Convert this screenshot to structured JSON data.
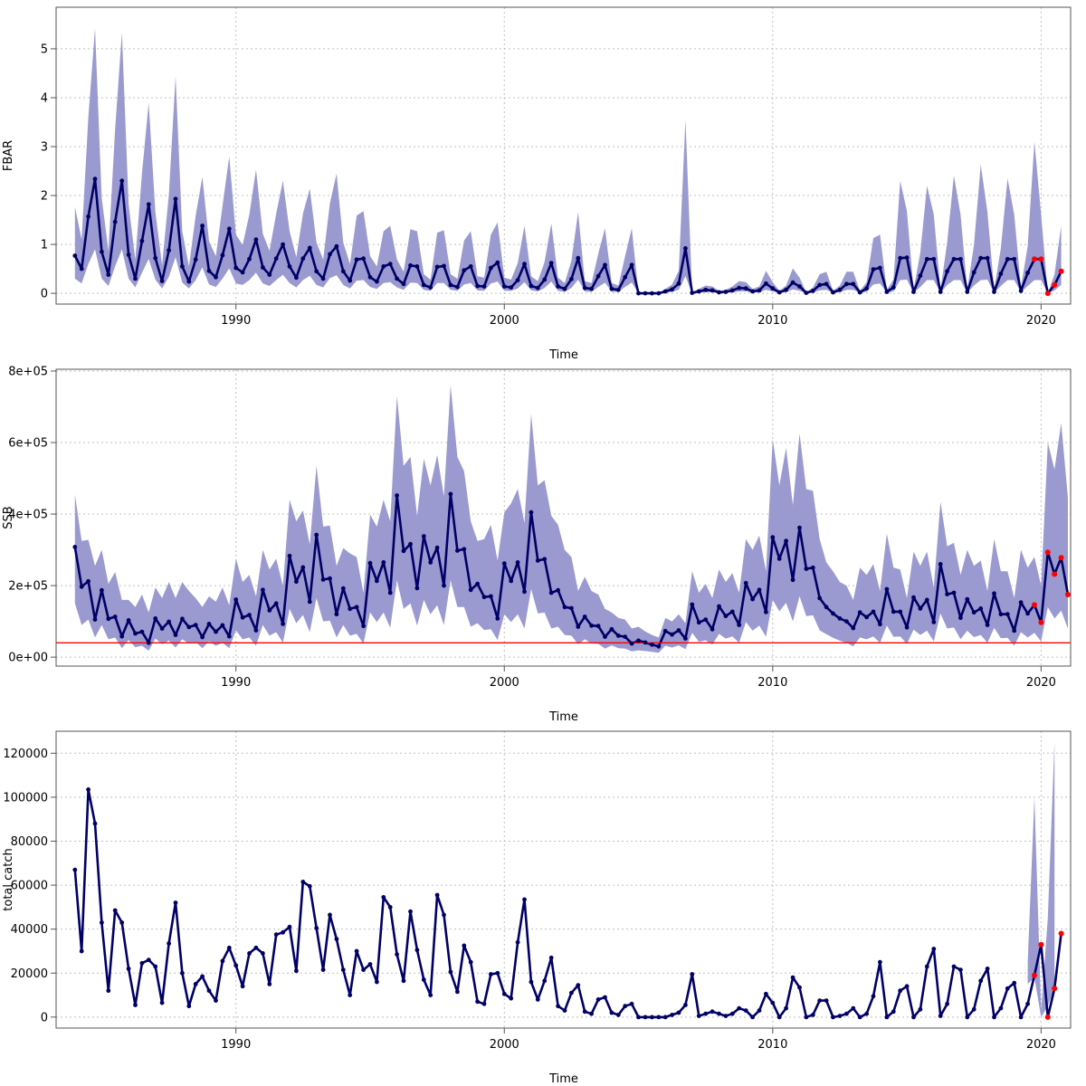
{
  "colors": {
    "band": "#9a9ad0",
    "line": "#000066",
    "recent": "#ff0000",
    "refline": "#ff0000",
    "grid": "#c0c0c0"
  },
  "chart_data": [
    {
      "type": "line",
      "xlabel": "Time",
      "ylabel": "FBAR",
      "xlim": [
        1983.3,
        2021.1
      ],
      "ylim": [
        -0.22,
        5.85
      ],
      "xticks": [
        1990,
        2000,
        2010,
        2020
      ],
      "xtick_labels": [
        "1990",
        "2000",
        "2010",
        "2020"
      ],
      "yticks": [
        0,
        1,
        2,
        3,
        4,
        5
      ],
      "ytick_labels": [
        "0",
        "1",
        "2",
        "3",
        "4",
        "5"
      ],
      "grid": true,
      "x_start": 1984.0,
      "x_step": 0.25,
      "recent_from": 2019.75,
      "values": [
        0.77,
        0.5,
        1.57,
        2.34,
        0.85,
        0.38,
        1.46,
        2.3,
        0.79,
        0.3,
        1.07,
        1.82,
        0.72,
        0.25,
        0.88,
        1.93,
        0.55,
        0.24,
        0.69,
        1.38,
        0.46,
        0.33,
        0.78,
        1.32,
        0.52,
        0.43,
        0.7,
        1.1,
        0.53,
        0.38,
        0.71,
        1.0,
        0.55,
        0.32,
        0.71,
        0.93,
        0.45,
        0.3,
        0.8,
        0.96,
        0.45,
        0.26,
        0.69,
        0.71,
        0.33,
        0.24,
        0.55,
        0.6,
        0.3,
        0.19,
        0.57,
        0.55,
        0.17,
        0.12,
        0.54,
        0.56,
        0.17,
        0.13,
        0.47,
        0.55,
        0.15,
        0.14,
        0.52,
        0.63,
        0.14,
        0.12,
        0.27,
        0.6,
        0.15,
        0.11,
        0.28,
        0.62,
        0.14,
        0.09,
        0.29,
        0.72,
        0.11,
        0.09,
        0.35,
        0.58,
        0.09,
        0.07,
        0.33,
        0.58,
        0.0,
        0.0,
        0.0,
        0.0,
        0.04,
        0.08,
        0.2,
        0.92,
        0.01,
        0.04,
        0.07,
        0.06,
        0.02,
        0.03,
        0.06,
        0.11,
        0.1,
        0.04,
        0.06,
        0.2,
        0.1,
        0.02,
        0.07,
        0.22,
        0.14,
        0.01,
        0.05,
        0.17,
        0.19,
        0.02,
        0.07,
        0.19,
        0.19,
        0.02,
        0.1,
        0.49,
        0.52,
        0.03,
        0.12,
        0.72,
        0.73,
        0.03,
        0.36,
        0.7,
        0.7,
        0.03,
        0.45,
        0.7,
        0.7,
        0.03,
        0.43,
        0.72,
        0.72,
        0.03,
        0.4,
        0.7,
        0.7,
        0.05,
        0.42,
        0.7,
        0.7,
        0.0,
        0.17,
        0.45
      ],
      "band_lower": [
        0.3,
        0.2,
        0.6,
        0.9,
        0.3,
        0.15,
        0.55,
        0.9,
        0.3,
        0.12,
        0.42,
        0.7,
        0.28,
        0.1,
        0.34,
        0.74,
        0.22,
        0.1,
        0.27,
        0.53,
        0.18,
        0.13,
        0.3,
        0.51,
        0.2,
        0.17,
        0.27,
        0.42,
        0.2,
        0.15,
        0.27,
        0.38,
        0.21,
        0.12,
        0.27,
        0.36,
        0.17,
        0.12,
        0.31,
        0.37,
        0.17,
        0.1,
        0.26,
        0.27,
        0.13,
        0.09,
        0.21,
        0.23,
        0.12,
        0.07,
        0.22,
        0.21,
        0.07,
        0.05,
        0.21,
        0.21,
        0.07,
        0.05,
        0.18,
        0.21,
        0.06,
        0.05,
        0.2,
        0.24,
        0.05,
        0.05,
        0.1,
        0.23,
        0.06,
        0.04,
        0.11,
        0.24,
        0.05,
        0.03,
        0.11,
        0.28,
        0.04,
        0.03,
        0.13,
        0.22,
        0.03,
        0.03,
        0.13,
        0.22,
        0.0,
        0.0,
        0.0,
        0.0,
        0.01,
        0.03,
        0.07,
        0.35,
        0.0,
        0.01,
        0.02,
        0.02,
        0.01,
        0.01,
        0.02,
        0.04,
        0.04,
        0.01,
        0.02,
        0.07,
        0.04,
        0.01,
        0.02,
        0.08,
        0.05,
        0.0,
        0.02,
        0.06,
        0.07,
        0.01,
        0.02,
        0.07,
        0.07,
        0.01,
        0.03,
        0.18,
        0.2,
        0.01,
        0.04,
        0.27,
        0.28,
        0.01,
        0.13,
        0.27,
        0.27,
        0.01,
        0.17,
        0.27,
        0.27,
        0.01,
        0.16,
        0.27,
        0.28,
        0.01,
        0.15,
        0.27,
        0.27,
        0.02,
        0.15,
        0.27,
        0.27,
        0.0,
        0.06,
        0.17
      ],
      "band_upper": [
        1.77,
        1.1,
        3.6,
        5.42,
        1.95,
        0.87,
        3.36,
        5.33,
        1.82,
        0.69,
        2.46,
        3.9,
        1.66,
        0.58,
        2.02,
        4.44,
        1.27,
        0.55,
        1.59,
        2.38,
        1.06,
        0.76,
        1.79,
        2.8,
        1.2,
        0.99,
        1.61,
        2.53,
        1.22,
        0.87,
        1.63,
        2.3,
        1.27,
        0.74,
        1.63,
        2.14,
        1.04,
        0.69,
        1.84,
        2.45,
        1.04,
        0.6,
        1.59,
        1.68,
        0.76,
        0.55,
        1.27,
        1.38,
        0.69,
        0.44,
        1.31,
        1.27,
        0.39,
        0.28,
        1.24,
        1.29,
        0.39,
        0.3,
        1.08,
        1.27,
        0.35,
        0.32,
        1.2,
        1.45,
        0.32,
        0.28,
        0.62,
        1.38,
        0.35,
        0.25,
        0.64,
        1.43,
        0.32,
        0.21,
        0.67,
        1.66,
        0.25,
        0.21,
        0.81,
        1.33,
        0.21,
        0.16,
        0.76,
        1.33,
        0.0,
        0.0,
        0.0,
        0.0,
        0.09,
        0.18,
        0.46,
        3.55,
        0.02,
        0.09,
        0.16,
        0.14,
        0.05,
        0.07,
        0.14,
        0.25,
        0.23,
        0.09,
        0.14,
        0.46,
        0.23,
        0.05,
        0.16,
        0.51,
        0.32,
        0.02,
        0.12,
        0.39,
        0.44,
        0.05,
        0.16,
        0.44,
        0.44,
        0.05,
        0.23,
        1.13,
        1.2,
        0.07,
        0.28,
        2.3,
        1.68,
        0.07,
        0.83,
        2.2,
        1.61,
        0.07,
        1.04,
        2.41,
        1.61,
        0.07,
        0.99,
        2.63,
        1.66,
        0.07,
        0.92,
        2.35,
        1.61,
        0.12,
        0.97,
        3.1,
        1.61,
        0.0,
        0.39,
        1.38
      ]
    },
    {
      "type": "line",
      "xlabel": "Time",
      "ylabel": "SSB",
      "xlim": [
        1983.3,
        2021.1
      ],
      "ylim": [
        -25000,
        805000
      ],
      "xticks": [
        1990,
        2000,
        2010,
        2020
      ],
      "xtick_labels": [
        "1990",
        "2000",
        "2010",
        "2020"
      ],
      "yticks": [
        0,
        200000,
        400000,
        600000,
        800000
      ],
      "ytick_labels": [
        "0e+00",
        "2e+05",
        "4e+05",
        "6e+05",
        "8e+05"
      ],
      "grid": true,
      "reference_line": 40000,
      "x_start": 1984.0,
      "x_step": 0.25,
      "recent_from": 2019.75,
      "values": [
        308000,
        197000,
        212000,
        105000,
        187000,
        107000,
        113000,
        58000,
        103000,
        66000,
        71000,
        40000,
        108000,
        80000,
        99000,
        62000,
        107000,
        84000,
        90000,
        56000,
        93000,
        71000,
        89000,
        58000,
        161000,
        111000,
        118000,
        75000,
        188000,
        131000,
        150000,
        93000,
        283000,
        211000,
        251000,
        155000,
        342000,
        217000,
        220000,
        120000,
        192000,
        135000,
        140000,
        87000,
        263000,
        213000,
        265000,
        180000,
        452000,
        297000,
        316000,
        193000,
        338000,
        265000,
        306000,
        200000,
        456000,
        298000,
        302000,
        188000,
        205000,
        168000,
        170000,
        108000,
        262000,
        213000,
        265000,
        183000,
        405000,
        270000,
        274000,
        180000,
        187000,
        140000,
        137000,
        85000,
        113000,
        88000,
        87000,
        57000,
        78000,
        60000,
        57000,
        38000,
        46000,
        41000,
        35000,
        30000,
        73000,
        63000,
        75000,
        52000,
        147000,
        97000,
        105000,
        78000,
        142000,
        115000,
        127000,
        90000,
        207000,
        162000,
        188000,
        126000,
        335000,
        275000,
        325000,
        216000,
        362000,
        247000,
        250000,
        165000,
        140000,
        122000,
        108000,
        100000,
        81000,
        125000,
        112000,
        127000,
        92000,
        190000,
        127000,
        127000,
        83000,
        167000,
        136000,
        160000,
        98000,
        260000,
        176000,
        180000,
        110000,
        162000,
        125000,
        136000,
        90000,
        178000,
        120000,
        120000,
        74000,
        153000,
        122000,
        146000,
        97000,
        293000,
        232000,
        278000,
        175000
      ],
      "band_lower": [
        150000,
        90000,
        105000,
        55000,
        90000,
        50000,
        55000,
        25000,
        48000,
        28000,
        32000,
        18000,
        52000,
        36000,
        46000,
        27000,
        50000,
        38000,
        42000,
        25000,
        44000,
        32000,
        40000,
        25000,
        75000,
        50000,
        55000,
        32000,
        90000,
        60000,
        70000,
        40000,
        135000,
        95000,
        118000,
        70000,
        165000,
        100000,
        102000,
        55000,
        90000,
        60000,
        65000,
        38000,
        125000,
        98000,
        125000,
        82000,
        215000,
        135000,
        150000,
        88000,
        160000,
        120000,
        145000,
        90000,
        215000,
        140000,
        140000,
        85000,
        95000,
        76000,
        78000,
        48000,
        120000,
        98000,
        120000,
        80000,
        190000,
        122000,
        125000,
        80000,
        85000,
        62000,
        60000,
        36000,
        50000,
        38000,
        37000,
        24000,
        33000,
        25000,
        24000,
        16000,
        19000,
        17000,
        15000,
        12000,
        32000,
        27000,
        33000,
        22000,
        68000,
        43000,
        47000,
        35000,
        65000,
        52000,
        58000,
        40000,
        98000,
        74000,
        88000,
        57000,
        160000,
        128000,
        152000,
        100000,
        170000,
        115000,
        117000,
        75000,
        64000,
        54000,
        46000,
        40000,
        30000,
        55000,
        50000,
        58000,
        40000,
        88000,
        57000,
        58000,
        37000,
        77000,
        62000,
        74000,
        44000,
        122000,
        80000,
        83000,
        50000,
        74000,
        56000,
        62000,
        40000,
        82000,
        53000,
        54000,
        32000,
        70000,
        55000,
        68000,
        44000,
        140000,
        108000,
        130000,
        80000
      ],
      "band_upper": [
        455000,
        325000,
        328000,
        255000,
        300000,
        205000,
        238000,
        160000,
        160000,
        140000,
        175000,
        125000,
        195000,
        165000,
        210000,
        165000,
        210000,
        185000,
        165000,
        140000,
        170000,
        155000,
        195000,
        145000,
        275000,
        210000,
        230000,
        170000,
        300000,
        245000,
        275000,
        200000,
        440000,
        380000,
        410000,
        315000,
        535000,
        365000,
        368000,
        255000,
        305000,
        290000,
        280000,
        180000,
        398000,
        365000,
        440000,
        380000,
        730000,
        535000,
        560000,
        395000,
        555000,
        480000,
        565000,
        450000,
        760000,
        560000,
        520000,
        380000,
        325000,
        330000,
        370000,
        270000,
        405000,
        430000,
        470000,
        375000,
        680000,
        480000,
        495000,
        395000,
        370000,
        300000,
        280000,
        185000,
        225000,
        185000,
        175000,
        135000,
        125000,
        110000,
        105000,
        80000,
        85000,
        72000,
        62000,
        55000,
        110000,
        100000,
        120000,
        95000,
        240000,
        180000,
        205000,
        165000,
        245000,
        210000,
        235000,
        180000,
        330000,
        300000,
        340000,
        240000,
        610000,
        480000,
        585000,
        425000,
        625000,
        470000,
        465000,
        330000,
        265000,
        240000,
        210000,
        200000,
        160000,
        250000,
        230000,
        260000,
        185000,
        345000,
        250000,
        245000,
        165000,
        295000,
        255000,
        295000,
        195000,
        435000,
        310000,
        320000,
        230000,
        300000,
        255000,
        270000,
        185000,
        330000,
        240000,
        240000,
        165000,
        300000,
        250000,
        280000,
        200000,
        600000,
        525000,
        655000,
        445000
      ]
    },
    {
      "type": "line",
      "xlabel": "Time",
      "ylabel": "total catch",
      "xlim": [
        1983.3,
        2021.1
      ],
      "ylim": [
        -5000,
        130000
      ],
      "xticks": [
        1990,
        2000,
        2010,
        2020
      ],
      "xtick_labels": [
        "1990",
        "2000",
        "2010",
        "2020"
      ],
      "yticks": [
        0,
        20000,
        40000,
        60000,
        80000,
        100000,
        120000
      ],
      "ytick_labels": [
        "0",
        "20000",
        "40000",
        "60000",
        "80000",
        "100000",
        "120000"
      ],
      "grid": true,
      "x_start": 1984.0,
      "x_step": 0.25,
      "recent_from": 2019.75,
      "values": [
        67000,
        30000,
        103500,
        88000,
        43000,
        12000,
        48500,
        43000,
        22000,
        5500,
        24500,
        26000,
        23000,
        6500,
        33500,
        52000,
        20000,
        5000,
        15000,
        18500,
        12000,
        7500,
        25500,
        31500,
        23500,
        14000,
        29000,
        31500,
        29000,
        15000,
        37500,
        38500,
        41000,
        21000,
        61500,
        59500,
        40500,
        21500,
        46500,
        35500,
        21500,
        10000,
        30000,
        21500,
        24000,
        16000,
        54500,
        50000,
        28500,
        16500,
        48000,
        30500,
        17000,
        10000,
        55500,
        46500,
        20500,
        11500,
        32500,
        25000,
        7000,
        6000,
        19500,
        20000,
        10500,
        8500,
        34000,
        53500,
        16000,
        8000,
        16500,
        27000,
        5000,
        3000,
        11000,
        14500,
        2500,
        1500,
        8000,
        9000,
        2000,
        1000,
        5000,
        6000,
        0,
        0,
        0,
        0,
        0,
        1000,
        2000,
        5500,
        19500,
        500,
        1500,
        2500,
        1500,
        500,
        1500,
        4000,
        3000,
        0,
        3000,
        10500,
        6500,
        0,
        4000,
        18000,
        13500,
        0,
        1000,
        7500,
        7500,
        0,
        500,
        1500,
        4000,
        0,
        1500,
        9500,
        25000,
        0,
        2500,
        12000,
        14000,
        0,
        3500,
        23000,
        31000,
        500,
        6000,
        23000,
        21500,
        0,
        3500,
        16500,
        22000,
        0,
        4000,
        13000,
        15500,
        0,
        6000,
        19000,
        33000,
        0,
        13000,
        38000
      ],
      "band_recent_x": [
        2019.5,
        2019.75,
        2020.0,
        2020.25,
        2020.5
      ],
      "band_recent_lower": [
        15000,
        18000,
        0,
        5000,
        13000
      ],
      "band_recent_upper": [
        25000,
        100000,
        3000,
        45000,
        125000
      ]
    }
  ]
}
